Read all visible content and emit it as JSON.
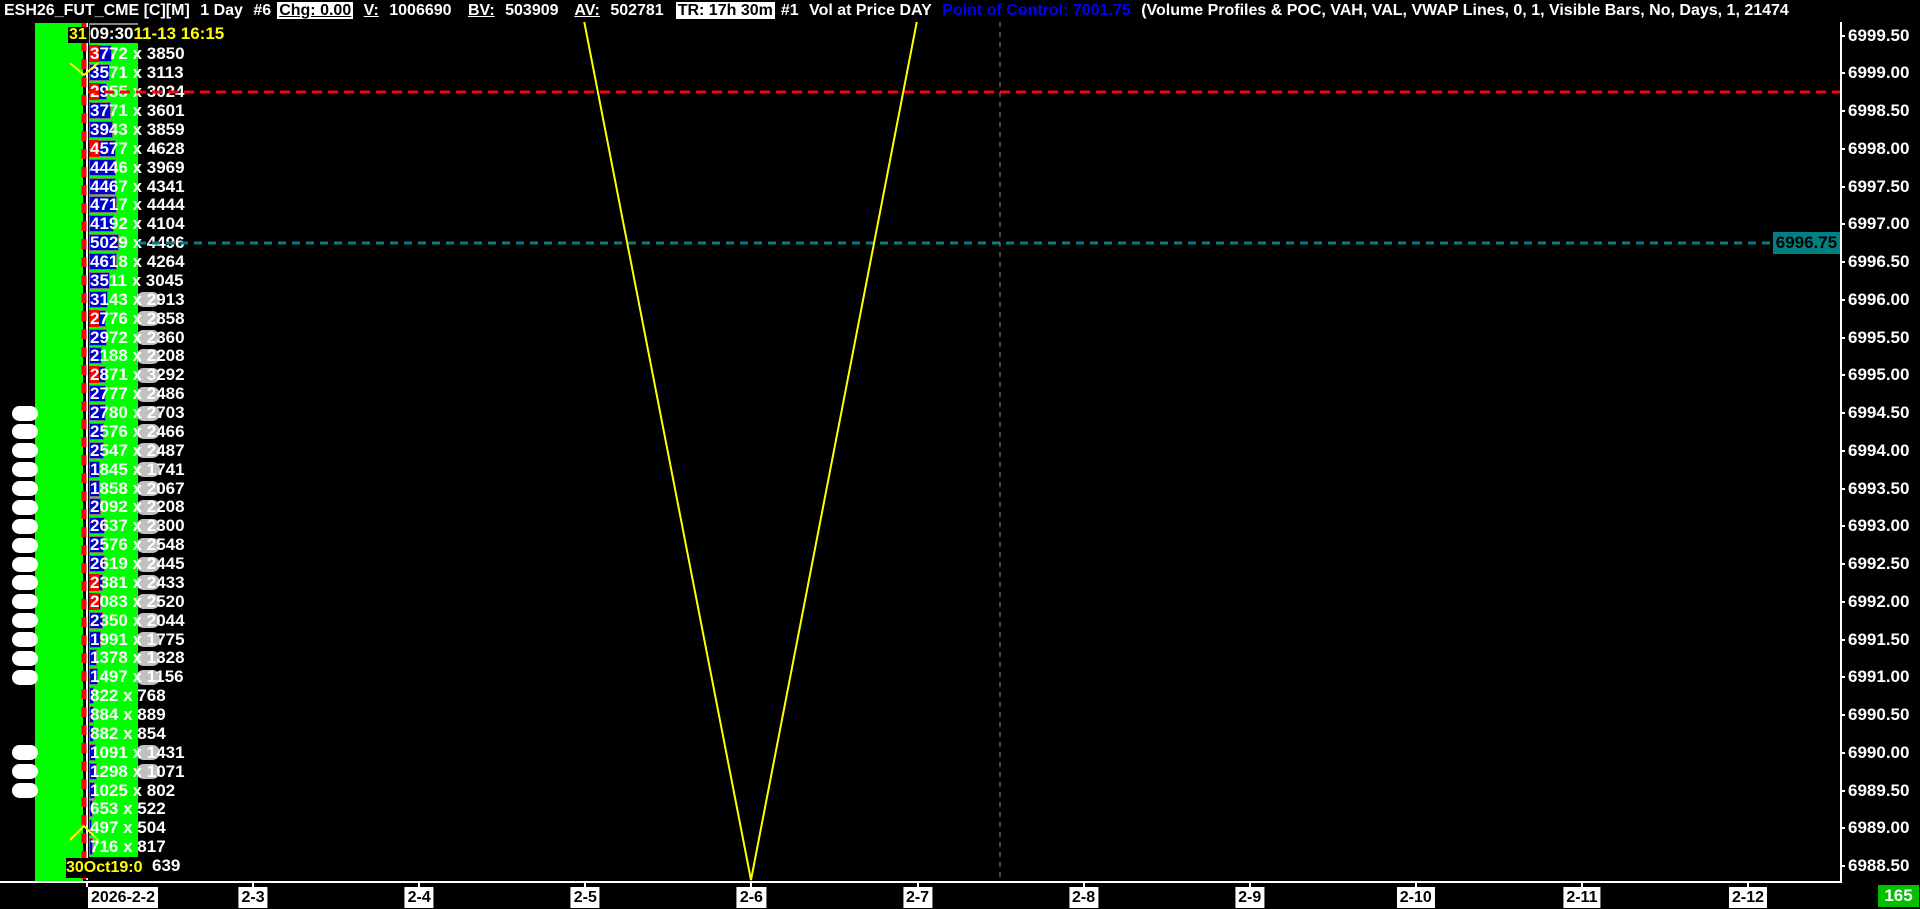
{
  "header": {
    "symbol": "ESH26_FUT_CME [C][M]",
    "period": "1 Day",
    "chart_no": "#6",
    "chg_label": "Chg: 0.00",
    "v_label": "V:",
    "v_value": "1006690",
    "bv_label": "BV:",
    "bv_value": "503909",
    "av_label": "AV:",
    "av_value": "502781",
    "tr_label": "TR: 17h 30m",
    "study_no": "#1",
    "study_name": "Vol at Price DAY",
    "poc_text": "Point of Control: 7001.75",
    "study_params": "(Volume Profiles & POC, VAH, VAL, VWAP Lines, 0, 1, Visible Bars, No, Days, 1, 21474"
  },
  "colors": {
    "background": "#000000",
    "profile_green": "#00ff00",
    "bid_blue": "#0000cc",
    "ask_red": "#ff0000",
    "poc_blue": "#0000ff",
    "vah_red": "#ff0000",
    "current_teal": "#008080",
    "study_line": "#ffff00"
  },
  "bar_labels": {
    "top_day": "31",
    "session_time": "09:30",
    "date_time": "11-13  16:15",
    "bottom_label": "30Oct19:0"
  },
  "price_rows": [
    {
      "price": 6999.25,
      "bid": "3772",
      "ask": "3850",
      "red": true
    },
    {
      "price": 6999.0,
      "bid": "3571",
      "ask": "3113"
    },
    {
      "price": 6998.75,
      "bid": "2955",
      "ask": "3024",
      "red": true
    },
    {
      "price": 6998.5,
      "bid": "3771",
      "ask": "3601"
    },
    {
      "price": 6998.25,
      "bid": "3943",
      "ask": "3859"
    },
    {
      "price": 6998.0,
      "bid": "4577",
      "ask": "4628",
      "red": true
    },
    {
      "price": 6997.75,
      "bid": "4446",
      "ask": "3969"
    },
    {
      "price": 6997.5,
      "bid": "4467",
      "ask": "4341"
    },
    {
      "price": 6997.25,
      "bid": "4717",
      "ask": "4444"
    },
    {
      "price": 6997.0,
      "bid": "4192",
      "ask": "4104"
    },
    {
      "price": 6996.75,
      "bid": "5029",
      "ask": "4496"
    },
    {
      "price": 6996.5,
      "bid": "4618",
      "ask": "4264"
    },
    {
      "price": 6996.25,
      "bid": "3511",
      "ask": "3045"
    },
    {
      "price": 6996.0,
      "bid": "3143",
      "ask": "2913",
      "gray": true
    },
    {
      "price": 6995.75,
      "bid": "2776",
      "ask": "2858",
      "gray": true,
      "red": true
    },
    {
      "price": 6995.5,
      "bid": "2972",
      "ask": "2360",
      "gray": true
    },
    {
      "price": 6995.25,
      "bid": "2188",
      "ask": "2208",
      "gray": true
    },
    {
      "price": 6995.0,
      "bid": "2871",
      "ask": "3292",
      "gray": true,
      "red": true
    },
    {
      "price": 6994.75,
      "bid": "2777",
      "ask": "2486",
      "gray": true
    },
    {
      "price": 6994.5,
      "bid": "2780",
      "ask": "2703",
      "gray": true,
      "white": true
    },
    {
      "price": 6994.25,
      "bid": "2576",
      "ask": "2466",
      "gray": true,
      "white": true
    },
    {
      "price": 6994.0,
      "bid": "2547",
      "ask": "2487",
      "gray": true,
      "white": true
    },
    {
      "price": 6993.75,
      "bid": "1845",
      "ask": "1741",
      "gray": true,
      "white": true
    },
    {
      "price": 6993.5,
      "bid": "1858",
      "ask": "2067",
      "gray": true,
      "white": true
    },
    {
      "price": 6993.25,
      "bid": "2092",
      "ask": "2208",
      "gray": true,
      "white": true
    },
    {
      "price": 6993.0,
      "bid": "2637",
      "ask": "2300",
      "gray": true,
      "white": true
    },
    {
      "price": 6992.75,
      "bid": "2576",
      "ask": "2548",
      "gray": true,
      "white": true
    },
    {
      "price": 6992.5,
      "bid": "2619",
      "ask": "2445",
      "gray": true,
      "white": true
    },
    {
      "price": 6992.25,
      "bid": "2381",
      "ask": "2433",
      "gray": true,
      "white": true,
      "red": true
    },
    {
      "price": 6992.0,
      "bid": "2083",
      "ask": "2520",
      "gray": true,
      "white": true,
      "red": true
    },
    {
      "price": 6991.75,
      "bid": "2350",
      "ask": "2044",
      "gray": true,
      "white": true
    },
    {
      "price": 6991.5,
      "bid": "1991",
      "ask": "1775",
      "gray": true,
      "white": true
    },
    {
      "price": 6991.25,
      "bid": "1378",
      "ask": "1328",
      "gray": true,
      "white": true
    },
    {
      "price": 6991.0,
      "bid": "1497",
      "ask": "1156",
      "gray": true,
      "white": true
    },
    {
      "price": 6990.75,
      "bid": "822",
      "ask": "768"
    },
    {
      "price": 6990.5,
      "bid": "884",
      "ask": "889"
    },
    {
      "price": 6990.25,
      "bid": "882",
      "ask": "854"
    },
    {
      "price": 6990.0,
      "bid": "1091",
      "ask": "1431",
      "gray": true,
      "white": true
    },
    {
      "price": 6989.75,
      "bid": "1298",
      "ask": "1071",
      "gray": true,
      "white": true
    },
    {
      "price": 6989.5,
      "bid": "1025",
      "ask": "802",
      "white": true
    },
    {
      "price": 6989.25,
      "bid": "653",
      "ask": "522"
    },
    {
      "price": 6989.0,
      "bid": "497",
      "ask": "504"
    },
    {
      "price": 6988.75,
      "bid": "716",
      "ask": "817"
    },
    {
      "price": 6988.5,
      "bid": "",
      "ask": "639"
    }
  ],
  "price_axis": {
    "labels": [
      "6999.50",
      "6999.00",
      "6998.50",
      "6998.00",
      "6997.50",
      "6997.00",
      "6996.50",
      "6996.00",
      "6995.50",
      "6995.00",
      "6994.50",
      "6994.00",
      "6993.50",
      "6993.00",
      "6992.50",
      "6992.00",
      "6991.50",
      "6991.00",
      "6990.50",
      "6990.00",
      "6989.50",
      "6989.00",
      "6988.50"
    ],
    "current_price": "6996.75",
    "vah_price": 6998.75
  },
  "date_axis": {
    "labels": [
      "2026-2-2",
      "2-3",
      "2-4",
      "2-5",
      "2-6",
      "2-7",
      "2-8",
      "2-9",
      "2-10",
      "2-11",
      "2-12"
    ]
  },
  "bar_countdown": "165"
}
